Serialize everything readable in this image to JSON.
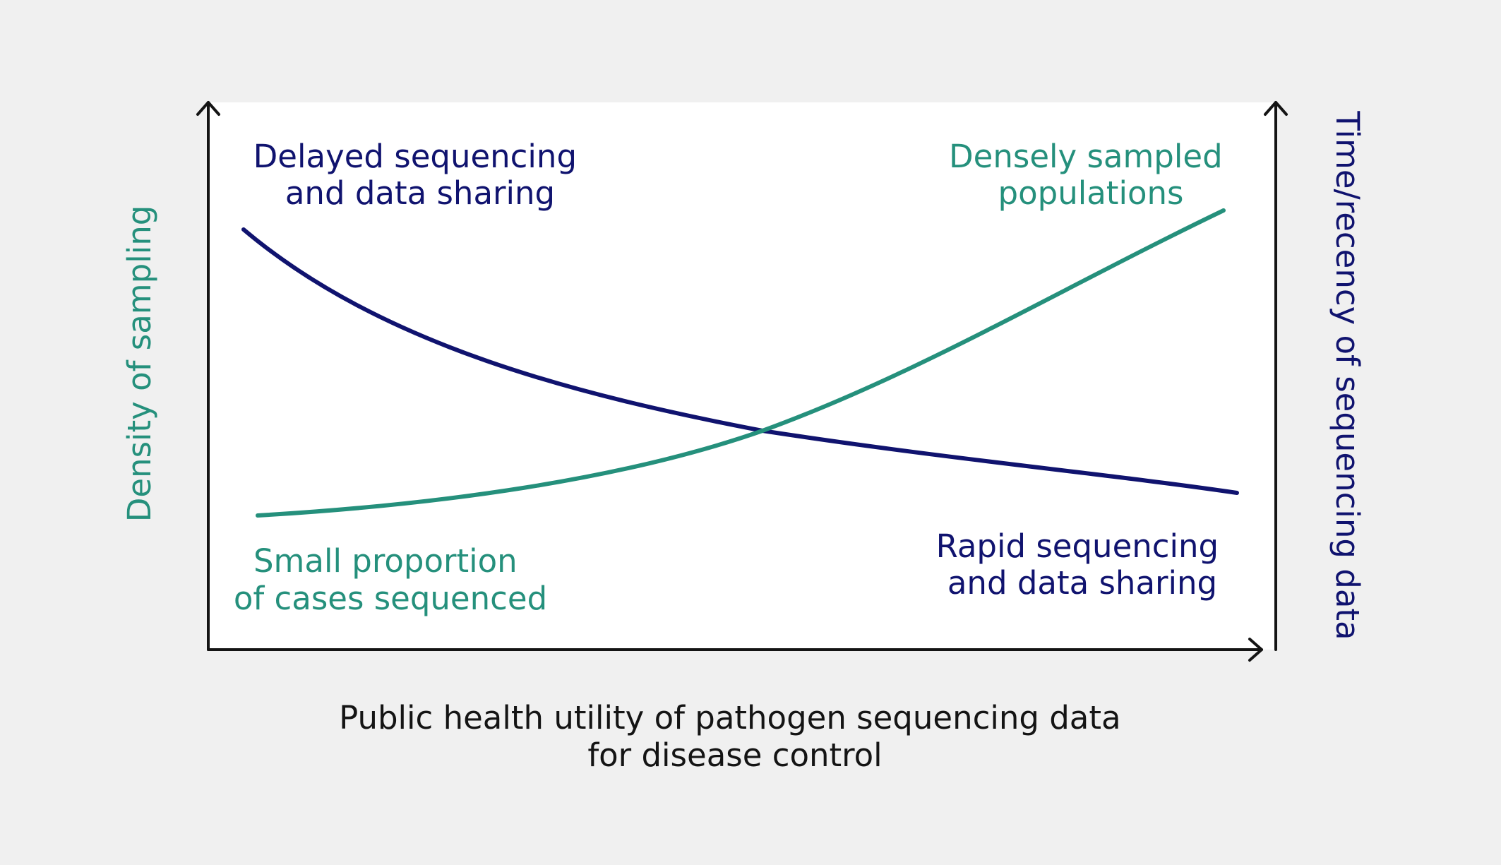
{
  "colors": {
    "background": "#f0f0f0",
    "plot_area": "#ffffff",
    "axis": "#141414",
    "recency_curve": "#10136f",
    "density_curve": "#25907c"
  },
  "axes": {
    "x_label_line1": "Public health utility of pathogen sequencing data",
    "x_label_line2": "for disease control",
    "y_left_label": "Density of sampling",
    "y_right_label": "Time/recency of sequencing data"
  },
  "annotations": {
    "delayed_line1": "Delayed sequencing",
    "delayed_line2": "and data sharing",
    "dense_line1": "Densely sampled",
    "dense_line2": "populations",
    "small_line1": "Small proportion",
    "small_line2": "of cases sequenced",
    "rapid_line1": "Rapid sequencing",
    "rapid_line2": "and data sharing"
  },
  "curves": [
    {
      "id": "recency",
      "trend": "decreasing",
      "color_key": "recency_curve"
    },
    {
      "id": "density",
      "trend": "increasing",
      "color_key": "density_curve"
    }
  ]
}
